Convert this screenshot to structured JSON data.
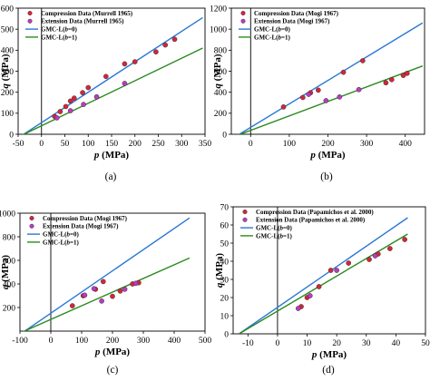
{
  "colors": {
    "compression": "#d3263a",
    "extension": "#b93bbf",
    "b0": "#2a77d6",
    "b1": "#2b8a1f"
  },
  "chart_data": [
    {
      "type": "scatter",
      "panel_label": "(a)",
      "xlabel": "p (MPa)",
      "ylabel": "q (MPa)",
      "xlim": [
        -50,
        350
      ],
      "ylim": [
        0,
        600
      ],
      "xticks": [
        "-50",
        "0",
        "50",
        "100",
        "150",
        "200",
        "250",
        "300",
        "350"
      ],
      "yticks": [
        "0",
        "100",
        "200",
        "300",
        "400",
        "500",
        "600"
      ],
      "xtick_values": [
        -50,
        0,
        50,
        100,
        150,
        200,
        250,
        300,
        350
      ],
      "ytick_values": [
        0,
        100,
        200,
        300,
        400,
        500,
        600
      ],
      "series": [
        {
          "name": "Compression Data (Murrell 1965)",
          "kind": "points",
          "color_key": "compression",
          "x": [
            28,
            40,
            52,
            62,
            70,
            88,
            100,
            138,
            178,
            200,
            245,
            265,
            285
          ],
          "y": [
            85,
            108,
            132,
            158,
            172,
            198,
            222,
            275,
            335,
            345,
            392,
            425,
            452
          ]
        },
        {
          "name": "Extension Data (Murrell 1965)",
          "kind": "points",
          "color_key": "extension",
          "x": [
            33,
            62,
            90,
            118,
            178
          ],
          "y": [
            78,
            112,
            142,
            178,
            242
          ]
        },
        {
          "name": "GMC-L(b=0)",
          "kind": "line",
          "color_key": "b0",
          "x": [
            -45,
            345
          ],
          "y": [
            -10,
            555
          ]
        },
        {
          "name": "GMC-L(b=1)",
          "kind": "line",
          "color_key": "b1",
          "x": [
            -45,
            345
          ],
          "y": [
            -8,
            410
          ]
        }
      ]
    },
    {
      "type": "scatter",
      "panel_label": "(b)",
      "xlabel": "p (MPa)",
      "ylabel": "q (MPa)",
      "xlim": [
        -50,
        450
      ],
      "ylim": [
        0,
        1200
      ],
      "xticks": [
        "0",
        "100",
        "200",
        "300",
        "400"
      ],
      "yticks": [
        "0",
        "200",
        "400",
        "600",
        "800",
        "1000",
        "1200"
      ],
      "xtick_values": [
        0,
        100,
        200,
        300,
        400
      ],
      "ytick_values": [
        0,
        200,
        400,
        600,
        800,
        1000,
        1200
      ],
      "series": [
        {
          "name": "Compression Data (Mogi 1967)",
          "kind": "points",
          "color_key": "compression",
          "x": [
            85,
            135,
            155,
            175,
            240,
            290,
            350,
            365,
            395,
            405
          ],
          "y": [
            260,
            350,
            395,
            420,
            590,
            700,
            490,
            520,
            560,
            580
          ]
        },
        {
          "name": "Extension Data (Mogi 1967)",
          "kind": "points",
          "color_key": "extension",
          "x": [
            150,
            195,
            230,
            280
          ],
          "y": [
            380,
            320,
            355,
            425
          ]
        },
        {
          "name": "GMC-L(b=0)",
          "kind": "line",
          "color_key": "b0",
          "x": [
            -45,
            445
          ],
          "y": [
            -35,
            1060
          ]
        },
        {
          "name": "GMC-L(b=1)",
          "kind": "line",
          "color_key": "b1",
          "x": [
            -45,
            445
          ],
          "y": [
            -25,
            650
          ]
        }
      ]
    },
    {
      "type": "scatter",
      "panel_label": "(c)",
      "xlabel": "p (MPa)",
      "ylabel": "q (MPa)",
      "xlim": [
        -100,
        500
      ],
      "ylim": [
        0,
        1000
      ],
      "xticks": [
        "-100",
        "0",
        "100",
        "200",
        "300",
        "400",
        "500"
      ],
      "yticks": [
        "200",
        "400",
        "600",
        "800",
        "1000"
      ],
      "xtick_values": [
        -100,
        0,
        100,
        200,
        300,
        400,
        500
      ],
      "ytick_values": [
        200,
        400,
        600,
        800,
        1000
      ],
      "series": [
        {
          "name": "Compression Data (Mogi 1967)",
          "kind": "points",
          "color_key": "compression",
          "x": [
            70,
            105,
            145,
            170,
            200,
            225,
            265,
            285
          ],
          "y": [
            215,
            300,
            355,
            420,
            295,
            340,
            400,
            410
          ]
        },
        {
          "name": "Extension Data (Mogi 1967)",
          "kind": "points",
          "color_key": "extension",
          "x": [
            110,
            140,
            165,
            240,
            275
          ],
          "y": [
            305,
            360,
            255,
            355,
            405
          ]
        },
        {
          "name": "GMC-L(b=0)",
          "kind": "line",
          "color_key": "b0",
          "x": [
            -90,
            450
          ],
          "y": [
            -10,
            960
          ]
        },
        {
          "name": "GMC-L(b=1)",
          "kind": "line",
          "color_key": "b1",
          "x": [
            -90,
            450
          ],
          "y": [
            -5,
            620
          ]
        }
      ]
    },
    {
      "type": "scatter",
      "panel_label": "(d)",
      "xlabel": "p (MPa)",
      "ylabel": "q (MPa)",
      "xlim": [
        -15,
        50
      ],
      "ylim": [
        0,
        70
      ],
      "xticks": [
        "-10",
        "0",
        "10",
        "20",
        "30",
        "40",
        "50"
      ],
      "yticks": [
        "0",
        "10",
        "20",
        "30",
        "40",
        "50",
        "60",
        "70"
      ],
      "xtick_values": [
        -10,
        0,
        10,
        20,
        30,
        40,
        50
      ],
      "ytick_values": [
        0,
        10,
        20,
        30,
        40,
        50,
        60,
        70
      ],
      "series": [
        {
          "name": "Compression Data (Papamichos et al. 2000)",
          "kind": "points",
          "color_key": "compression",
          "x": [
            8,
            10,
            14,
            18,
            24,
            31,
            34,
            38,
            43
          ],
          "y": [
            15,
            20,
            26,
            35,
            39,
            41,
            44,
            47,
            52
          ]
        },
        {
          "name": "Extension Data (Papamichos et al. 2000)",
          "kind": "points",
          "color_key": "extension",
          "x": [
            7,
            11,
            20,
            33
          ],
          "y": [
            14,
            21,
            35,
            43
          ]
        },
        {
          "name": "GMC-L(b=0)",
          "kind": "line",
          "color_key": "b0",
          "x": [
            -13,
            44
          ],
          "y": [
            0,
            64
          ]
        },
        {
          "name": "GMC-L(b=1)",
          "kind": "line",
          "color_key": "b1",
          "x": [
            -13,
            44
          ],
          "y": [
            0,
            55
          ]
        }
      ]
    }
  ]
}
